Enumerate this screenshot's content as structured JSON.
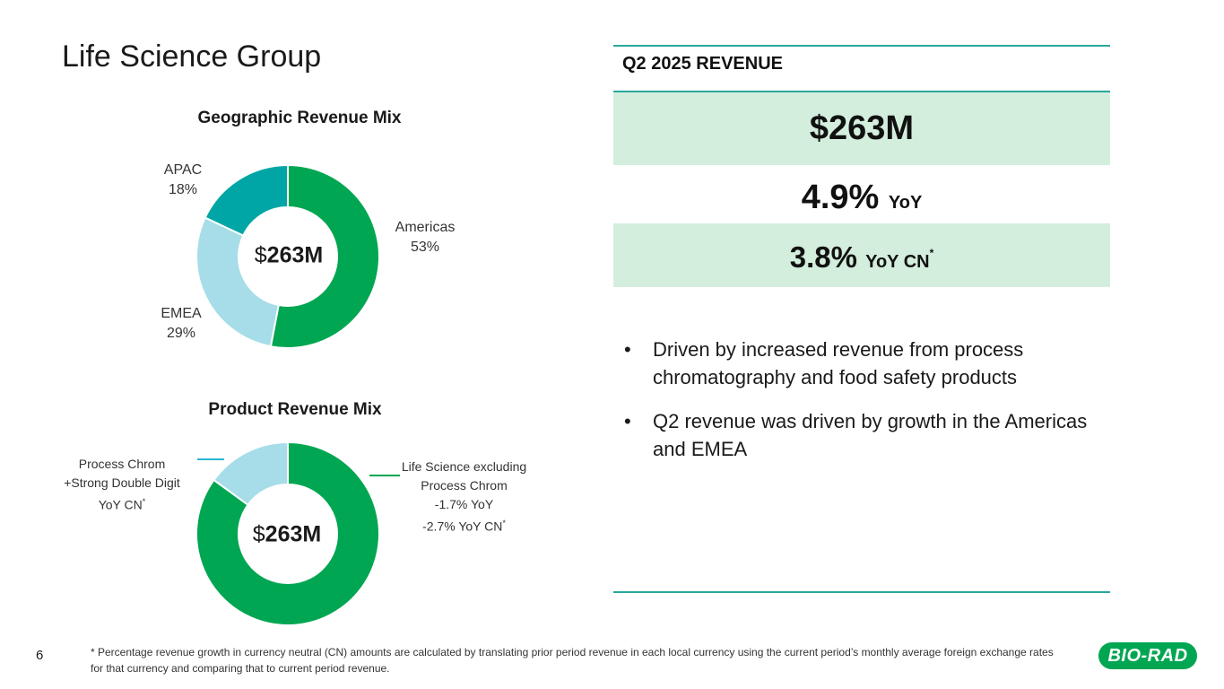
{
  "page": {
    "title": "Life Science Group",
    "page_number": "6",
    "footnote": "* Percentage revenue growth in currency neutral (CN) amounts are calculated by translating prior period revenue in each local currency using the current period’s monthly average foreign exchange rates for that currency and comparing that to current period revenue.",
    "logo_text": "BIO-RAD"
  },
  "colors": {
    "green": "#00a651",
    "teal": "#00a6a6",
    "light_blue": "#a6dde8",
    "band": "#d3eedd",
    "rule": "#2aa79b"
  },
  "chart_data": [
    {
      "type": "pie",
      "title": "Geographic Revenue Mix",
      "center_label": {
        "prefix": "$",
        "value": "263M"
      },
      "slices": [
        {
          "name": "Americas",
          "value": 53,
          "label": "53%",
          "color": "#00a651"
        },
        {
          "name": "EMEA",
          "value": 29,
          "label": "29%",
          "color": "#a6dde8"
        },
        {
          "name": "APAC",
          "value": 18,
          "label": "18%",
          "color": "#00a6a6"
        }
      ]
    },
    {
      "type": "pie",
      "title": "Product Revenue Mix",
      "center_label": {
        "prefix": "$",
        "value": "263M"
      },
      "slices": [
        {
          "name": "Life Science excluding Process Chrom",
          "value": 85,
          "lines": [
            "Life Science excluding",
            "Process Chrom",
            "-1.7% YoY",
            "-2.7% YoY CN"
          ],
          "color": "#00a651"
        },
        {
          "name": "Process Chrom",
          "value": 15,
          "lines": [
            "Process Chrom",
            "+Strong Double Digit",
            "YoY CN"
          ],
          "color": "#a6dde8"
        }
      ]
    }
  ],
  "revenue": {
    "header": "Q2 2025 REVENUE",
    "total": "$263M",
    "yoy_value": "4.9%",
    "yoy_label": "YoY",
    "cn_value": "3.8%",
    "cn_label": "YoY CN",
    "asterisk": "*"
  },
  "bullets": [
    "Driven by increased revenue from process chromatography and food safety products",
    "Q2 revenue was driven by growth in the Americas and EMEA"
  ],
  "bullet_char": "•"
}
